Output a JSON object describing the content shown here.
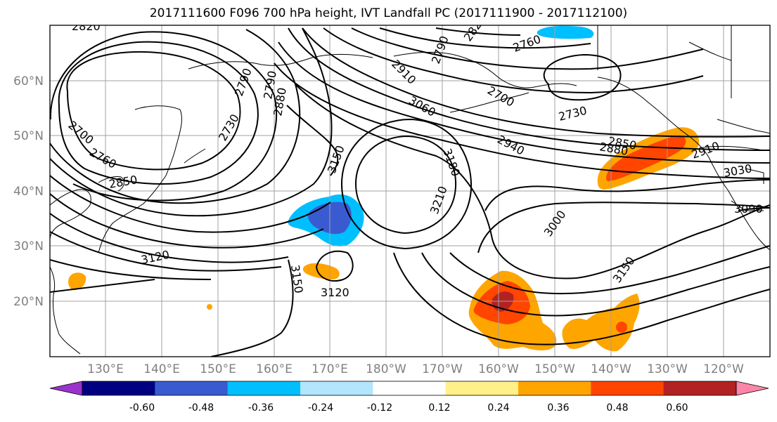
{
  "title": "2017111600 F096 700 hPa height, IVT Landfall PC (2017111900 - 2017112100)",
  "lat_labels": [
    "60°N",
    "50°N",
    "40°N",
    "30°N",
    "20°N"
  ],
  "lon_labels": [
    "130°E",
    "140°E",
    "150°E",
    "160°E",
    "170°E",
    "180°W",
    "170°W",
    "160°W",
    "150°W",
    "140°W",
    "130°W",
    "120°W"
  ],
  "contour_labels": [
    "2820",
    "2790",
    "2730",
    "2760",
    "2700",
    "2850",
    "2790",
    "2880",
    "2910",
    "3060",
    "3150",
    "3180",
    "3210",
    "3120",
    "3150",
    "3120",
    "2760",
    "2820",
    "2790",
    "2700",
    "2730",
    "2940",
    "2850",
    "2880",
    "2910",
    "3030",
    "3090",
    "3000",
    "3150"
  ],
  "colorbar": {
    "tick_labels": [
      "-0.60",
      "-0.48",
      "-0.36",
      "-0.24",
      "-0.12",
      "0.12",
      "0.24",
      "0.36",
      "0.48",
      "0.60"
    ],
    "colors": [
      "#9933cc",
      "#000080",
      "#3a5bd0",
      "#00bfff",
      "#b3e5fc",
      "#ffffff",
      "#fff08a",
      "#ffa500",
      "#ff4500",
      "#b22222",
      "#ff85a8"
    ]
  }
}
